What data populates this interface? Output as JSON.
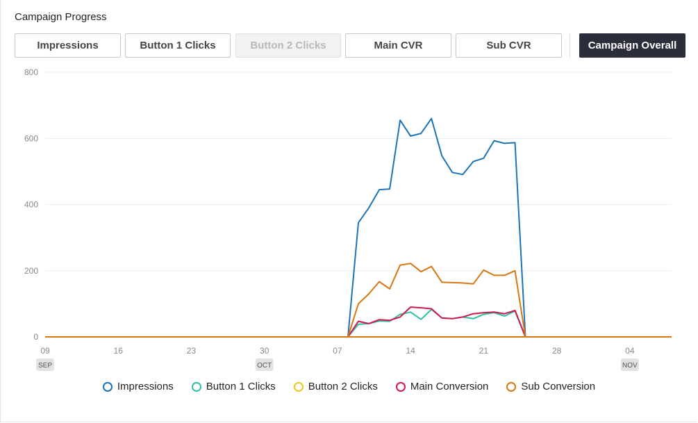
{
  "header": {
    "title": "Campaign Progress"
  },
  "buttons": [
    {
      "label": "Impressions",
      "state": "normal"
    },
    {
      "label": "Button 1 Clicks",
      "state": "normal"
    },
    {
      "label": "Button 2 Clicks",
      "state": "disabled"
    },
    {
      "label": "Main CVR",
      "state": "normal"
    },
    {
      "label": "Sub CVR",
      "state": "normal"
    },
    {
      "label": "Campaign Overall",
      "state": "active"
    }
  ],
  "chart_data": {
    "type": "line",
    "title": "",
    "xlabel": "",
    "ylabel": "",
    "x_start": "2019-09-09",
    "x_end": "2019-11-08",
    "ylim": [
      0,
      800
    ],
    "y_ticks": [
      "0",
      "200",
      "400",
      "600",
      "800"
    ],
    "x_ticks": [
      {
        "date": "2019-09-09",
        "label": "09",
        "month": "SEP"
      },
      {
        "date": "2019-09-16",
        "label": "16",
        "month": ""
      },
      {
        "date": "2019-09-23",
        "label": "23",
        "month": ""
      },
      {
        "date": "2019-09-30",
        "label": "30",
        "month": "OCT"
      },
      {
        "date": "2019-10-07",
        "label": "07",
        "month": ""
      },
      {
        "date": "2019-10-14",
        "label": "14",
        "month": ""
      },
      {
        "date": "2019-10-21",
        "label": "21",
        "month": ""
      },
      {
        "date": "2019-10-28",
        "label": "28",
        "month": ""
      },
      {
        "date": "2019-11-04",
        "label": "04",
        "month": "NOV"
      }
    ],
    "grid": "horizontal",
    "legend_position": "bottom",
    "x": [
      "2019-10-08",
      "2019-10-09",
      "2019-10-10",
      "2019-10-11",
      "2019-10-12",
      "2019-10-13",
      "2019-10-14",
      "2019-10-15",
      "2019-10-16",
      "2019-10-17",
      "2019-10-18",
      "2019-10-19",
      "2019-10-20",
      "2019-10-21",
      "2019-10-22",
      "2019-10-23",
      "2019-10-24",
      "2019-10-25"
    ],
    "series": [
      {
        "name": "Impressions",
        "color": "#1a73b5",
        "values": [
          0,
          345,
          390,
          445,
          447,
          655,
          607,
          615,
          660,
          547,
          497,
          491,
          530,
          540,
          593,
          585,
          587,
          0
        ]
      },
      {
        "name": "Button 1 Clicks",
        "color": "#2bbfa4",
        "values": [
          0,
          38,
          40,
          48,
          47,
          68,
          75,
          53,
          83,
          57,
          55,
          60,
          55,
          68,
          73,
          63,
          78,
          0
        ]
      },
      {
        "name": "Button 2 Clicks",
        "color": "#f2c31b",
        "values": [
          0,
          0,
          0,
          0,
          0,
          0,
          0,
          0,
          0,
          0,
          0,
          0,
          0,
          0,
          0,
          0,
          0,
          0
        ]
      },
      {
        "name": "Main Conversion",
        "color": "#d0184a",
        "values": [
          0,
          47,
          40,
          52,
          50,
          60,
          90,
          88,
          85,
          57,
          55,
          60,
          70,
          73,
          75,
          70,
          80,
          0
        ]
      },
      {
        "name": "Sub Conversion",
        "color": "#d9760f",
        "values": [
          0,
          100,
          130,
          167,
          145,
          217,
          222,
          197,
          213,
          165,
          164,
          163,
          160,
          202,
          186,
          186,
          200,
          0
        ]
      }
    ]
  }
}
